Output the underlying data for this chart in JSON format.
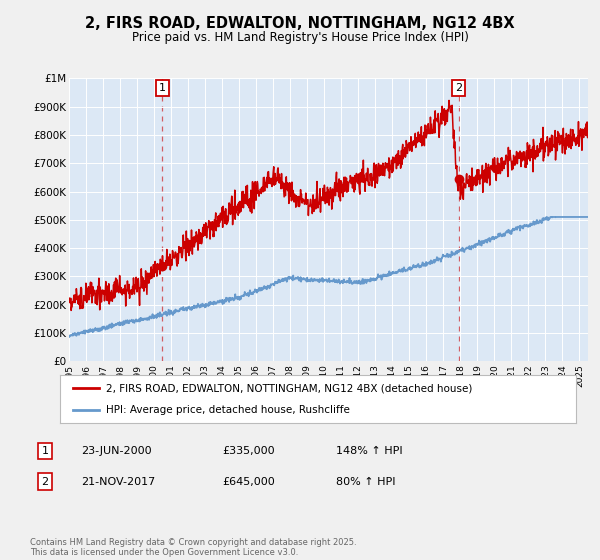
{
  "title": "2, FIRS ROAD, EDWALTON, NOTTINGHAM, NG12 4BX",
  "subtitle": "Price paid vs. HM Land Registry's House Price Index (HPI)",
  "bg_color": "#f0f0f0",
  "plot_bg_color": "#dce8f5",
  "grid_color": "#ffffff",
  "hpi_color": "#6699cc",
  "price_color": "#cc0000",
  "ylim": [
    0,
    1000000
  ],
  "yticks": [
    0,
    100000,
    200000,
    300000,
    400000,
    500000,
    600000,
    700000,
    800000,
    900000,
    1000000
  ],
  "ytick_labels": [
    "£0",
    "£100K",
    "£200K",
    "£300K",
    "£400K",
    "£500K",
    "£600K",
    "£700K",
    "£800K",
    "£900K",
    "£1M"
  ],
  "sale1_date": 2000.48,
  "sale1_price": 335000,
  "sale2_date": 2017.9,
  "sale2_price": 645000,
  "legend_line1": "2, FIRS ROAD, EDWALTON, NOTTINGHAM, NG12 4BX (detached house)",
  "legend_line2": "HPI: Average price, detached house, Rushcliffe",
  "table_row1": [
    "1",
    "23-JUN-2000",
    "£335,000",
    "148% ↑ HPI"
  ],
  "table_row2": [
    "2",
    "21-NOV-2017",
    "£645,000",
    "80% ↑ HPI"
  ],
  "footer": "Contains HM Land Registry data © Crown copyright and database right 2025.\nThis data is licensed under the Open Government Licence v3.0.",
  "xmin": 1995.0,
  "xmax": 2025.5
}
